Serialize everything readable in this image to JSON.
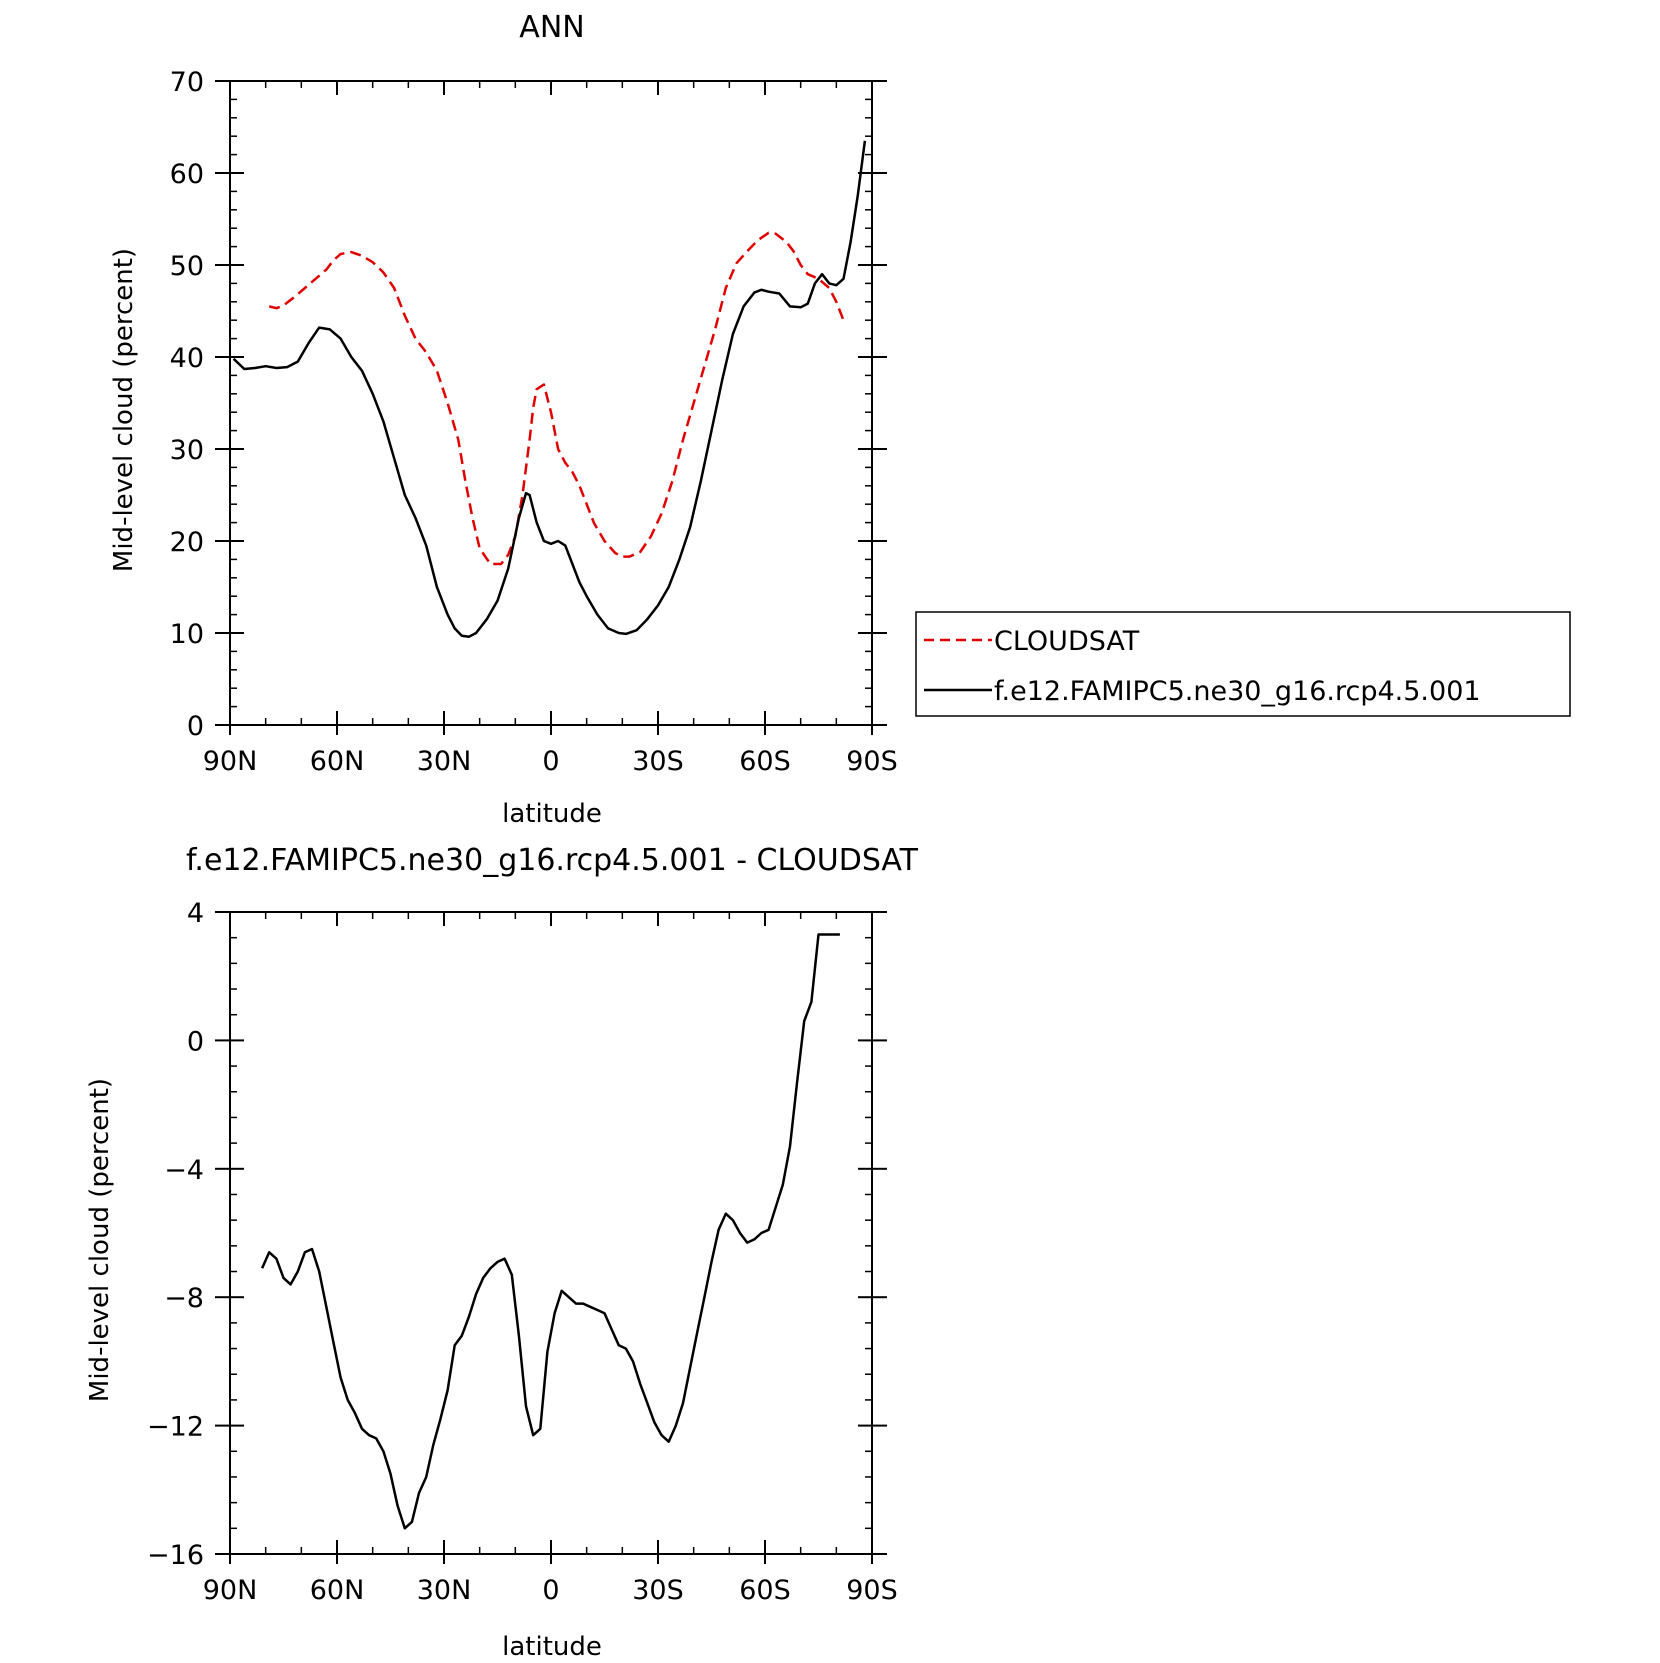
{
  "chart_data": [
    {
      "type": "line",
      "title": "ANN",
      "xlabel": "latitude",
      "ylabel": "Mid-level cloud (percent)",
      "xlim": [
        90,
        -90
      ],
      "ylim": [
        0,
        70
      ],
      "x_ticks": [
        90,
        60,
        30,
        0,
        -30,
        -60,
        -90
      ],
      "x_tick_labels": [
        "90N",
        "60N",
        "30N",
        "0",
        "30S",
        "60S",
        "90S"
      ],
      "y_ticks": [
        0,
        10,
        20,
        30,
        40,
        50,
        60,
        70
      ],
      "y_tick_labels": [
        "0",
        "10",
        "20",
        "30",
        "40",
        "50",
        "60",
        "70"
      ],
      "legend_position": "right",
      "series": [
        {
          "name": "CLOUDSAT",
          "color": "#e00000",
          "dash": true,
          "x": [
            79,
            77,
            75,
            72,
            69,
            66,
            63,
            61,
            59,
            56,
            53,
            50,
            47,
            44,
            41,
            38,
            35,
            32,
            29,
            26,
            24,
            22,
            20,
            17,
            14,
            12,
            10,
            8,
            6,
            5,
            4,
            2,
            0,
            -2,
            -4,
            -6,
            -8,
            -10,
            -12,
            -15,
            -18,
            -20,
            -22,
            -25,
            -28,
            -31,
            -34,
            -37,
            -40,
            -43,
            -46,
            -49,
            -52,
            -55,
            -58,
            -61,
            -63,
            -64,
            -66,
            -68,
            -70,
            -72,
            -75,
            -78,
            -80,
            -82
          ],
          "y": [
            45.5,
            45.3,
            45.6,
            46.5,
            47.5,
            48.5,
            49.5,
            50.5,
            51.2,
            51.4,
            51,
            50.3,
            49.2,
            47.5,
            44.5,
            42,
            40.5,
            38.5,
            35,
            31,
            26.5,
            22.5,
            19.2,
            17.5,
            17.5,
            18.5,
            20.5,
            25,
            31,
            34.5,
            36.5,
            37,
            34,
            30,
            28.5,
            27.5,
            26,
            24,
            22,
            20,
            18.7,
            18.3,
            18.3,
            18.8,
            20.5,
            23,
            26.5,
            31,
            35,
            39,
            43,
            47.5,
            50.2,
            51.5,
            52.7,
            53.5,
            53.4,
            53.1,
            52.5,
            51.5,
            50,
            49,
            48.5,
            47.5,
            46,
            44
          ]
        },
        {
          "name": "f.e12.FAMIPC5.ne30_g16.rcp4.5.001",
          "color": "#000000",
          "dash": false,
          "x": [
            89,
            86,
            83,
            80,
            77,
            74,
            71,
            68,
            65,
            62,
            59,
            56,
            53,
            50,
            47,
            44,
            41,
            38,
            35,
            32,
            29,
            27,
            25,
            23,
            21,
            18,
            15,
            12,
            9,
            7,
            6,
            4,
            2,
            0,
            -2,
            -4,
            -6,
            -8,
            -10,
            -13,
            -16,
            -19,
            -21,
            -24,
            -27,
            -30,
            -33,
            -36,
            -39,
            -42,
            -45,
            -48,
            -51,
            -54,
            -57,
            -59,
            -61,
            -64,
            -67,
            -70,
            -72,
            -74,
            -76,
            -78,
            -80,
            -82,
            -84,
            -86,
            -88
          ],
          "y": [
            39.8,
            38.7,
            38.8,
            39,
            38.8,
            38.9,
            39.5,
            41.5,
            43.2,
            43,
            42,
            40,
            38.5,
            36,
            33,
            29,
            25,
            22.5,
            19.5,
            15,
            12,
            10.5,
            9.7,
            9.6,
            10,
            11.5,
            13.5,
            17,
            22.5,
            25.2,
            25,
            22,
            20,
            19.7,
            20,
            19.5,
            17.5,
            15.5,
            14,
            12,
            10.5,
            10,
            9.9,
            10.3,
            11.5,
            13,
            15,
            18,
            21.5,
            26.5,
            32,
            37.5,
            42.5,
            45.5,
            47,
            47.3,
            47.1,
            46.9,
            45.5,
            45.4,
            45.8,
            48,
            49,
            48,
            47.8,
            48.5,
            52.5,
            57.5,
            63.5
          ]
        }
      ]
    },
    {
      "type": "line",
      "title": "f.e12.FAMIPC5.ne30_g16.rcp4.5.001 - CLOUDSAT",
      "xlabel": "latitude",
      "ylabel": "Mid-level cloud (percent)",
      "xlim": [
        90,
        -90
      ],
      "ylim": [
        -16,
        4
      ],
      "x_ticks": [
        90,
        60,
        30,
        0,
        -30,
        -60,
        -90
      ],
      "x_tick_labels": [
        "90N",
        "60N",
        "30N",
        "0",
        "30S",
        "60S",
        "90S"
      ],
      "y_ticks": [
        -16,
        -12,
        -8,
        -4,
        0,
        4
      ],
      "y_tick_labels": [
        "−16",
        "−12",
        "−8",
        "−4",
        "0",
        "4"
      ],
      "series": [
        {
          "color": "#000000",
          "dash": false,
          "x": [
            81,
            79,
            77,
            75,
            73,
            71,
            69,
            67,
            65,
            63,
            61,
            59,
            57,
            55,
            53,
            51,
            49,
            47,
            45,
            43,
            41,
            39,
            37,
            35,
            33,
            31,
            29,
            27,
            25,
            23,
            21,
            19,
            17,
            15,
            13,
            11,
            9,
            7,
            5,
            3,
            1,
            -1,
            -3,
            -5,
            -7,
            -9,
            -11,
            -13,
            -15,
            -17,
            -19,
            -21,
            -23,
            -25,
            -27,
            -29,
            -31,
            -33,
            -35,
            -37,
            -39,
            -41,
            -43,
            -45,
            -47,
            -49,
            -51,
            -53,
            -55,
            -57,
            -59,
            -61,
            -63,
            -65,
            -67,
            -69,
            -71,
            -73,
            -75,
            -77,
            -79,
            -81
          ],
          "y": [
            -7.1,
            -6.6,
            -6.8,
            -7.4,
            -7.6,
            -7.2,
            -6.6,
            -6.5,
            -7.2,
            -8.3,
            -9.4,
            -10.5,
            -11.2,
            -11.6,
            -12.1,
            -12.3,
            -12.4,
            -12.8,
            -13.5,
            -14.5,
            -15.2,
            -15,
            -14.1,
            -13.6,
            -12.6,
            -11.8,
            -10.9,
            -9.5,
            -9.2,
            -8.6,
            -7.9,
            -7.4,
            -7.1,
            -6.9,
            -6.8,
            -7.3,
            -9.2,
            -11.4,
            -12.3,
            -12.1,
            -9.7,
            -8.5,
            -7.8,
            -8,
            -8.2,
            -8.2,
            -8.3,
            -8.4,
            -8.5,
            -9,
            -9.5,
            -9.6,
            -10,
            -10.7,
            -11.3,
            -11.9,
            -12.3,
            -12.5,
            -12,
            -11.3,
            -10.2,
            -9.1,
            -8,
            -6.9,
            -5.9,
            -5.4,
            -5.6,
            -6,
            -6.3,
            -6.2,
            -6,
            -5.9,
            -5.2,
            -4.5,
            -3.3,
            -1.3,
            0.6,
            1.2,
            3.3,
            3.3,
            3.3,
            3.3
          ]
        }
      ]
    }
  ]
}
